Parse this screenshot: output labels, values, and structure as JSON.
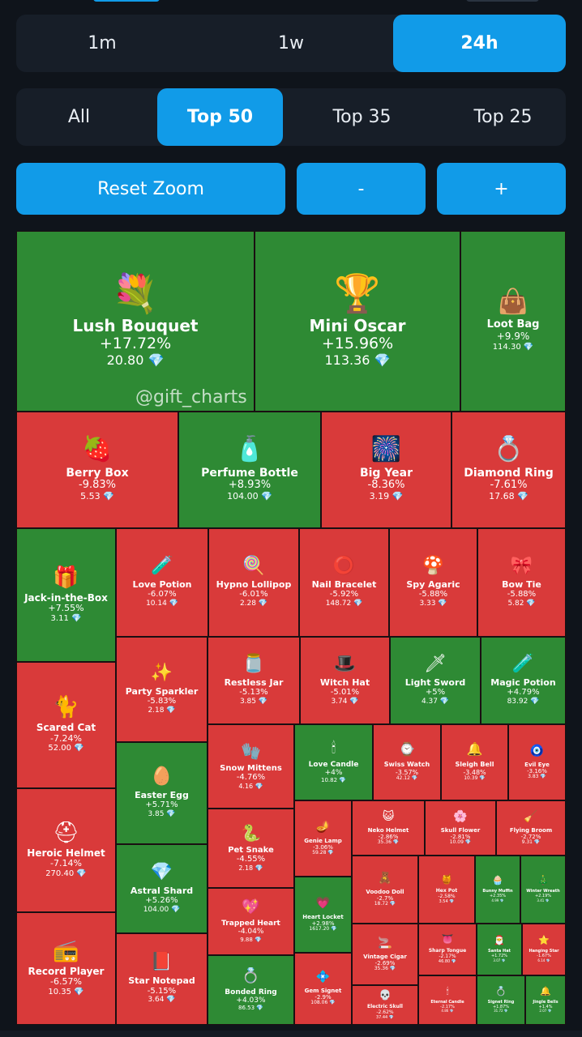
{
  "timeframes": {
    "items": [
      {
        "label": "1m"
      },
      {
        "label": "1w"
      },
      {
        "label": "24h"
      }
    ],
    "active": "24h"
  },
  "filters": {
    "items": [
      {
        "label": "All"
      },
      {
        "label": "Top 50"
      },
      {
        "label": "Top 35"
      },
      {
        "label": "Top 25"
      }
    ],
    "active": "Top 50"
  },
  "zoom": {
    "reset_label": "Reset Zoom",
    "minus_label": "-",
    "plus_label": "+"
  },
  "watermark": "@gift_charts",
  "currency_icon": "diamond-icon",
  "colors": {
    "gain": "#2e8a34",
    "loss": "#d93a3a",
    "accent": "#119be8",
    "background": "#0f141b",
    "diamond": "#7fd8ff"
  },
  "tiles": [
    {
      "name": "Lush Bouquet",
      "change": "+17.72%",
      "price": "20.80",
      "icon": "bouquet-icon",
      "glyph": "💐",
      "trend": "up"
    },
    {
      "name": "Mini Oscar",
      "change": "+15.96%",
      "price": "113.36",
      "icon": "trophy-icon",
      "glyph": "🏆",
      "trend": "up"
    },
    {
      "name": "Loot Bag",
      "change": "+9.9%",
      "price": "114.30",
      "icon": "bag-icon",
      "glyph": "👜",
      "trend": "up"
    },
    {
      "name": "Berry Box",
      "change": "-9.83%",
      "price": "5.53",
      "icon": "berry-box-icon",
      "glyph": "🍓",
      "trend": "down"
    },
    {
      "name": "Perfume Bottle",
      "change": "+8.93%",
      "price": "104.00",
      "icon": "perfume-icon",
      "glyph": "🧴",
      "trend": "up"
    },
    {
      "name": "Big Year",
      "change": "-8.36%",
      "price": "3.19",
      "icon": "big-year-icon",
      "glyph": "🎆",
      "trend": "down"
    },
    {
      "name": "Diamond Ring",
      "change": "-7.61%",
      "price": "17.68",
      "icon": "ring-box-icon",
      "glyph": "💍",
      "trend": "down"
    },
    {
      "name": "Jack-in-the-Box",
      "change": "+7.55%",
      "price": "3.11",
      "icon": "toy-box-icon",
      "glyph": "🎁",
      "trend": "up"
    },
    {
      "name": "Love Potion",
      "change": "-6.07%",
      "price": "10.14",
      "icon": "potion-icon",
      "glyph": "🧪",
      "trend": "down"
    },
    {
      "name": "Hypno Lollipop",
      "change": "-6.01%",
      "price": "2.28",
      "icon": "lollipop-icon",
      "glyph": "🍭",
      "trend": "down"
    },
    {
      "name": "Nail Bracelet",
      "change": "-5.92%",
      "price": "148.72",
      "icon": "bracelet-icon",
      "glyph": "⭕",
      "trend": "down"
    },
    {
      "name": "Spy Agaric",
      "change": "-5.88%",
      "price": "3.33",
      "icon": "mushroom-icon",
      "glyph": "🍄",
      "trend": "down"
    },
    {
      "name": "Bow Tie",
      "change": "-5.88%",
      "price": "5.82",
      "icon": "bow-tie-icon",
      "glyph": "🎀",
      "trend": "down"
    },
    {
      "name": "Party Sparkler",
      "change": "-5.83%",
      "price": "2.18",
      "icon": "sparkler-icon",
      "glyph": "✨",
      "trend": "down"
    },
    {
      "name": "Restless Jar",
      "change": "-5.13%",
      "price": "3.85",
      "icon": "jar-icon",
      "glyph": "🫙",
      "trend": "down"
    },
    {
      "name": "Witch Hat",
      "change": "-5.01%",
      "price": "3.74",
      "icon": "witch-hat-icon",
      "glyph": "🎩",
      "trend": "down"
    },
    {
      "name": "Light Sword",
      "change": "+5%",
      "price": "4.37",
      "icon": "sword-icon",
      "glyph": "🗡",
      "trend": "up"
    },
    {
      "name": "Magic Potion",
      "change": "+4.79%",
      "price": "83.92",
      "icon": "magic-potion-icon",
      "glyph": "🧪",
      "trend": "up"
    },
    {
      "name": "Scared Cat",
      "change": "-7.24%",
      "price": "52.00",
      "icon": "cat-icon",
      "glyph": "🐈",
      "trend": "down"
    },
    {
      "name": "Easter Egg",
      "change": "+5.71%",
      "price": "3.85",
      "icon": "egg-icon",
      "glyph": "🥚",
      "trend": "up"
    },
    {
      "name": "Snow Mittens",
      "change": "-4.76%",
      "price": "4.16",
      "icon": "mittens-icon",
      "glyph": "🧤",
      "trend": "down"
    },
    {
      "name": "Love Candle",
      "change": "+4%",
      "price": "10.82",
      "icon": "candle-icon",
      "glyph": "🕯",
      "trend": "up"
    },
    {
      "name": "Swiss Watch",
      "change": "-3.57%",
      "price": "42.12",
      "icon": "watch-icon",
      "glyph": "⌚",
      "trend": "down"
    },
    {
      "name": "Sleigh Bell",
      "change": "-3.48%",
      "price": "10.39",
      "icon": "bell-icon",
      "glyph": "🔔",
      "trend": "down"
    },
    {
      "name": "Evil Eye",
      "change": "-3.16%",
      "price": "3.83",
      "icon": "evil-eye-icon",
      "glyph": "🧿",
      "trend": "down"
    },
    {
      "name": "Heroic Helmet",
      "change": "-7.14%",
      "price": "270.40",
      "icon": "helmet-icon",
      "glyph": "⛑",
      "trend": "down"
    },
    {
      "name": "Astral Shard",
      "change": "+5.26%",
      "price": "104.00",
      "icon": "crystal-icon",
      "glyph": "💎",
      "trend": "up"
    },
    {
      "name": "Pet Snake",
      "change": "-4.55%",
      "price": "2.18",
      "icon": "snake-icon",
      "glyph": "🐍",
      "trend": "down"
    },
    {
      "name": "Genie Lamp",
      "change": "-3.06%",
      "price": "59.28",
      "icon": "lamp-icon",
      "glyph": "🪔",
      "trend": "down"
    },
    {
      "name": "Neko Helmet",
      "change": "-2.86%",
      "price": "35.36",
      "icon": "neko-helmet-icon",
      "glyph": "😺",
      "trend": "down"
    },
    {
      "name": "Skull Flower",
      "change": "-2.81%",
      "price": "10.09",
      "icon": "flower-icon",
      "glyph": "🌸",
      "trend": "down"
    },
    {
      "name": "Flying Broom",
      "change": "-2.72%",
      "price": "9.31",
      "icon": "broom-icon",
      "glyph": "🧹",
      "trend": "down"
    },
    {
      "name": "Trapped Heart",
      "change": "-4.04%",
      "price": "9.88",
      "icon": "heart-icon",
      "glyph": "💖",
      "trend": "down"
    },
    {
      "name": "Voodoo Doll",
      "change": "-2.7%",
      "price": "18.72",
      "icon": "doll-icon",
      "glyph": "🧸",
      "trend": "down"
    },
    {
      "name": "Hex Pot",
      "change": "-2.58%",
      "price": "3.54",
      "icon": "pot-icon",
      "glyph": "🍯",
      "trend": "down"
    },
    {
      "name": "Bunny Muffin",
      "change": "+2.35%",
      "price": "4.99",
      "icon": "muffin-icon",
      "glyph": "🧁",
      "trend": "up"
    },
    {
      "name": "Winter Wreath",
      "change": "+2.19%",
      "price": "3.41",
      "icon": "wreath-icon",
      "glyph": "🎄",
      "trend": "up"
    },
    {
      "name": "Heart Locket",
      "change": "+2.98%",
      "price": "1617.20",
      "icon": "locket-icon",
      "glyph": "💗",
      "trend": "up"
    },
    {
      "name": "Record Player",
      "change": "-6.57%",
      "price": "10.35",
      "icon": "record-player-icon",
      "glyph": "📻",
      "trend": "down"
    },
    {
      "name": "Star Notepad",
      "change": "-5.15%",
      "price": "3.64",
      "icon": "notepad-icon",
      "glyph": "📕",
      "trend": "down"
    },
    {
      "name": "Vintage Cigar",
      "change": "-2.69%",
      "price": "35.36",
      "icon": "cigar-icon",
      "glyph": "🚬",
      "trend": "down"
    },
    {
      "name": "Sharp Tongue",
      "change": "-2.17%",
      "price": "46.80",
      "icon": "tongue-icon",
      "glyph": "👅",
      "trend": "down"
    },
    {
      "name": "Santa Hat",
      "change": "+1.72%",
      "price": "3.07",
      "icon": "santa-hat-icon",
      "glyph": "🎅",
      "trend": "up"
    },
    {
      "name": "Hanging Star",
      "change": "-1.67%",
      "price": "6.14",
      "icon": "star-icon",
      "glyph": "⭐",
      "trend": "down"
    },
    {
      "name": "Bonded Ring",
      "change": "+4.03%",
      "price": "86.53",
      "icon": "bonded-ring-icon",
      "glyph": "💍",
      "trend": "up"
    },
    {
      "name": "Gem Signet",
      "change": "-2.9%",
      "price": "108.06",
      "icon": "gem-signet-icon",
      "glyph": "💠",
      "trend": "down"
    },
    {
      "name": "Electric Skull",
      "change": "-2.62%",
      "price": "37.44",
      "icon": "skull-icon",
      "glyph": "💀",
      "trend": "down"
    },
    {
      "name": "Eternal Candle",
      "change": "-2.17%",
      "price": "4.86",
      "icon": "eternal-candle-icon",
      "glyph": "🕯",
      "trend": "down"
    },
    {
      "name": "Signet Ring",
      "change": "+1.87%",
      "price": "31.72",
      "icon": "signet-ring-icon",
      "glyph": "💍",
      "trend": "up"
    },
    {
      "name": "Jingle Bells",
      "change": "+1.4%",
      "price": "2.07",
      "icon": "jingle-bells-icon",
      "glyph": "🔔",
      "trend": "up"
    }
  ]
}
